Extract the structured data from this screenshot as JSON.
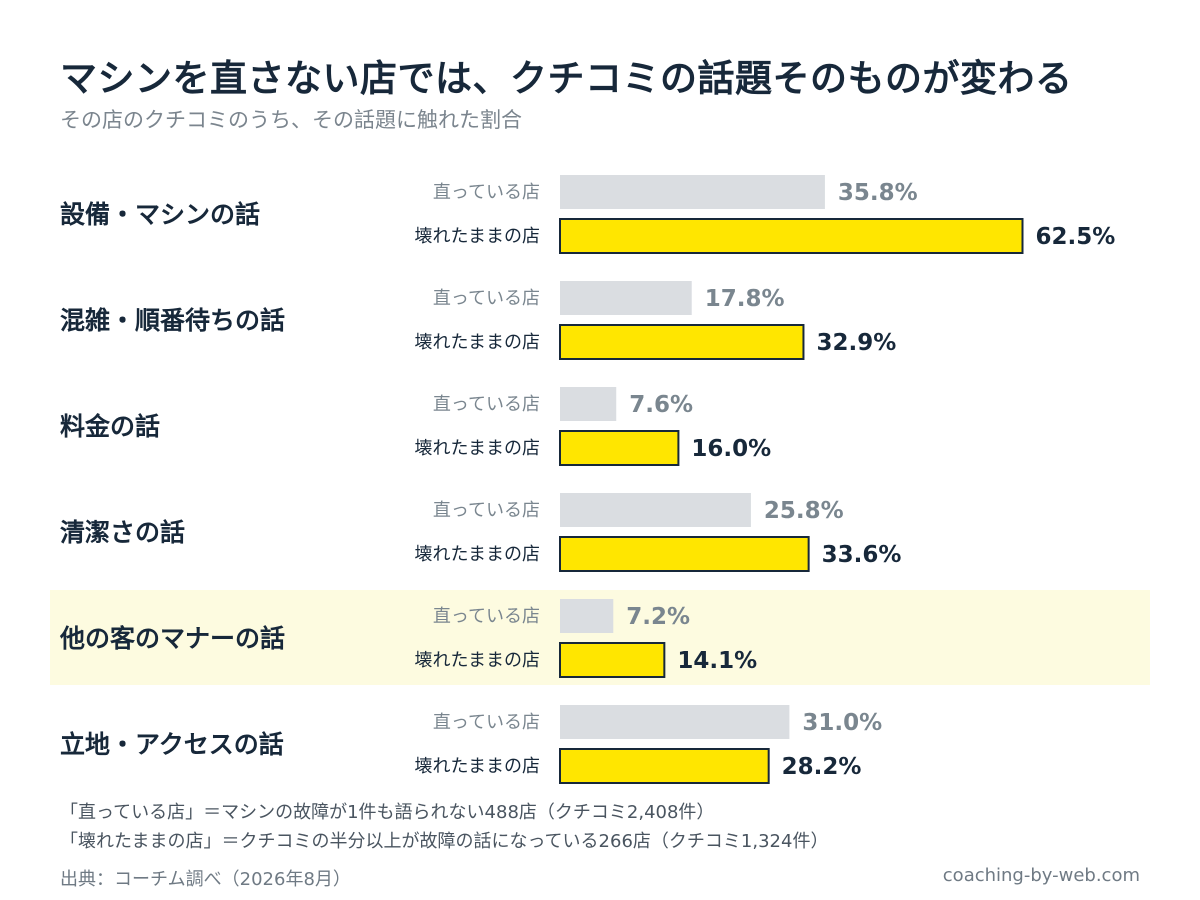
{
  "title": "マシンを直さない店では、クチコミの話題そのものが変わる",
  "subtitle": "その店のクチコミのうち、その話題に触れた割合",
  "chart_data": {
    "type": "bar",
    "orientation": "horizontal",
    "title": "マシンを直さない店では、クチコミの話題そのものが変わる",
    "subtitle": "その店のクチコミのうち、その話題に触れた割合",
    "categories": [
      "設備・マシンの話",
      "混雑・順番待ちの話",
      "料金の話",
      "清潔さの話",
      "他の客のマナーの話",
      "立地・アクセスの話"
    ],
    "series": [
      {
        "name": "直っている店",
        "color": "#dadde1",
        "label_color": "#7a868f",
        "values": [
          35.8,
          17.8,
          7.6,
          25.8,
          7.2,
          31.0
        ]
      },
      {
        "name": "壊れたままの店",
        "color": "#ffe600",
        "label_color": "#17283a",
        "values": [
          62.5,
          32.9,
          16.0,
          33.6,
          14.1,
          28.2
        ]
      }
    ],
    "value_format": "percent_1dp",
    "xlim": [
      0,
      100
    ],
    "highlight_category": "他の客のマナーの話",
    "highlight_color": "#fdfbe0",
    "grid": false,
    "legend": "inline-row-labels"
  },
  "notes": [
    "「直っている店」＝マシンの故障が1件も語られない488店（クチコミ2,408件）",
    "「壊れたままの店」＝クチコミの半分以上が故障の話になっている266店（クチコミ1,324件）"
  ],
  "source": "出典：コーチム調べ（2026年8月）",
  "credit": "coaching-by-web.com"
}
